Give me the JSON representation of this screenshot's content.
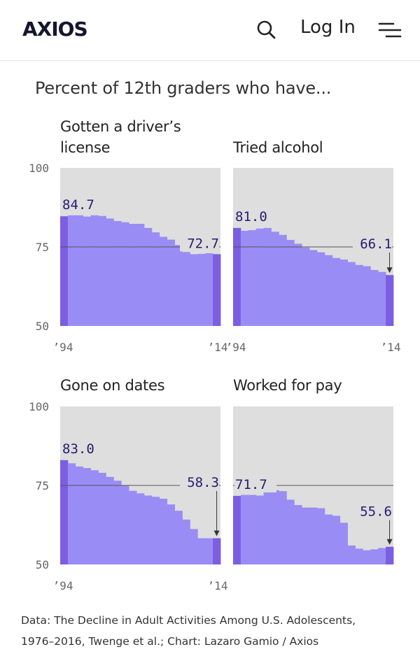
{
  "header": {
    "logo": "AXIOS",
    "login_label": "Log In",
    "search_icon": "search-icon",
    "menu_icon": "menu-icon"
  },
  "colors": {
    "bar": "#9a8cf5",
    "bar_endpoint": "#7c5ee0",
    "panel_bg": "#dedede",
    "value_text": "#2a1a6e",
    "axis_text": "#666666"
  },
  "chart_data": {
    "type": "bar",
    "title": "Percent of 12th graders who have...",
    "ylim": [
      50,
      100
    ],
    "yticks": [
      "100",
      "75",
      "50"
    ],
    "xtick_labels": [
      "’94",
      "’14"
    ],
    "years": [
      1994,
      1995,
      1996,
      1997,
      1998,
      1999,
      2000,
      2001,
      2002,
      2003,
      2004,
      2005,
      2006,
      2007,
      2008,
      2009,
      2010,
      2011,
      2012,
      2013,
      2014
    ],
    "panels": [
      {
        "label_lines": [
          "Gotten a driver’s",
          "license"
        ],
        "values": [
          84.7,
          85.0,
          85.0,
          84.6,
          85.0,
          84.8,
          84.0,
          83.2,
          82.8,
          82.3,
          82.3,
          81.0,
          79.6,
          78.2,
          77.3,
          75.6,
          73.4,
          72.7,
          72.8,
          73.0,
          72.7
        ],
        "start_label": "84.7",
        "end_label": "72.7",
        "show_xticks": true,
        "end_arrow": false
      },
      {
        "label_lines": [
          "Tried alcohol"
        ],
        "values": [
          81.0,
          80.1,
          80.3,
          80.8,
          81.0,
          79.8,
          78.8,
          77.2,
          76.0,
          74.8,
          74.0,
          73.3,
          72.4,
          71.5,
          71.0,
          70.2,
          69.3,
          68.9,
          67.7,
          67.1,
          66.1
        ],
        "start_label": "81.0",
        "end_label": "66.1",
        "show_xticks": true,
        "end_arrow": true
      },
      {
        "label_lines": [
          "Gone on dates"
        ],
        "values": [
          83.0,
          82.0,
          81.0,
          80.5,
          79.8,
          79.0,
          77.7,
          76.5,
          75.0,
          73.3,
          72.5,
          71.8,
          71.4,
          70.8,
          69.0,
          67.0,
          64.2,
          61.2,
          58.3,
          58.3,
          58.3
        ],
        "start_label": "83.0",
        "end_label": "58.3",
        "show_xticks": true,
        "end_arrow": true
      },
      {
        "label_lines": [
          "Worked for pay"
        ],
        "values": [
          71.7,
          72.0,
          72.0,
          71.8,
          72.8,
          73.5,
          73.2,
          70.5,
          68.8,
          68.0,
          68.0,
          67.8,
          65.8,
          65.4,
          63.2,
          56.0,
          55.0,
          54.5,
          54.8,
          55.2,
          55.6
        ],
        "start_label": "71.7",
        "end_label": "55.6",
        "show_xticks": false,
        "end_arrow": true
      }
    ]
  },
  "footer": {
    "line1": "Data: The Decline in Adult Activities Among U.S. Adolescents,",
    "line2": "1976–2016, Twenge et al.; Chart: Lazaro Gamio / Axios"
  }
}
